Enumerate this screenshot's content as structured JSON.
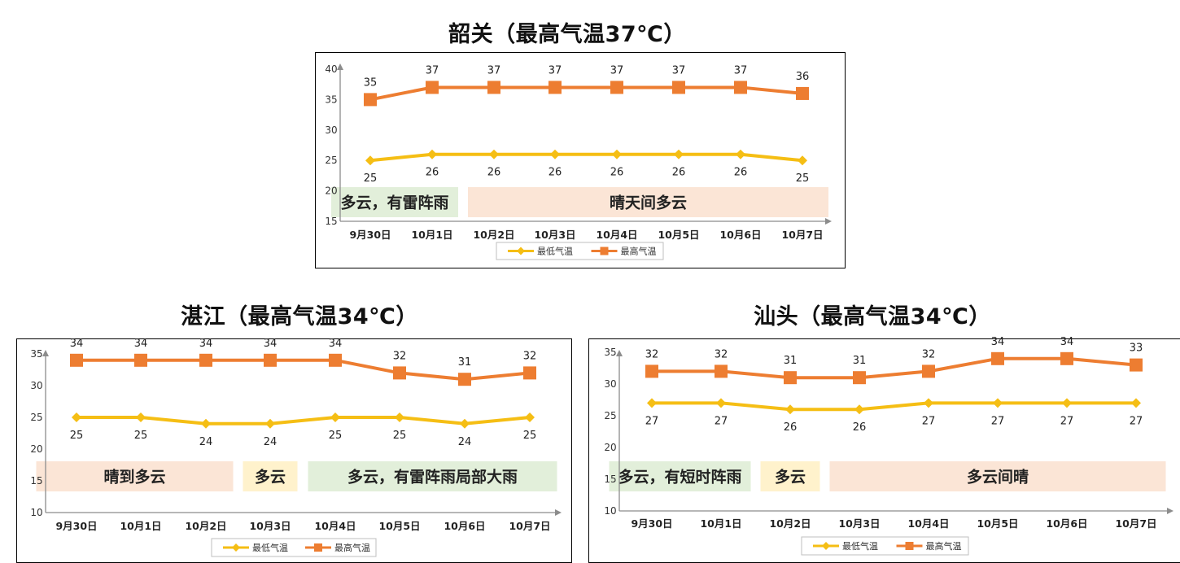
{
  "colors": {
    "max_line": "#ED7D31",
    "min_line": "#F5BE14",
    "weather_green": "#E2EFDA",
    "weather_peach": "#FBE5D6",
    "weather_yellow": "#FFF2CC",
    "axis": "#8c8c8c"
  },
  "chart_data": [
    {
      "type": "line",
      "title": "韶关（最高气温37℃）",
      "categories": [
        "9月30日",
        "10月1日",
        "10月2日",
        "10月3日",
        "10月4日",
        "10月5日",
        "10月6日",
        "10月7日"
      ],
      "series": [
        {
          "name": "最低气温",
          "values": [
            25,
            26,
            26,
            26,
            26,
            26,
            26,
            25
          ],
          "marker": "diamond"
        },
        {
          "name": "最高气温",
          "values": [
            35,
            37,
            37,
            37,
            37,
            37,
            37,
            36
          ],
          "marker": "square"
        }
      ],
      "ylim": [
        15,
        40
      ],
      "yticks": [
        15,
        20,
        25,
        30,
        35,
        40
      ],
      "grid": false,
      "legend": "bottom",
      "weather": [
        {
          "text": "多云，有雷阵雨",
          "from": "9月30日",
          "to": "10月1日",
          "color": "green"
        },
        {
          "text": "晴天间多云",
          "from": "10月2日",
          "to": "10月7日",
          "color": "peach"
        }
      ]
    },
    {
      "type": "line",
      "title": "湛江（最高气温34℃）",
      "categories": [
        "9月30日",
        "10月1日",
        "10月2日",
        "10月3日",
        "10月4日",
        "10月5日",
        "10月6日",
        "10月7日"
      ],
      "series": [
        {
          "name": "最低气温",
          "values": [
            25,
            25,
            24,
            24,
            25,
            25,
            24,
            25
          ],
          "marker": "diamond"
        },
        {
          "name": "最高气温",
          "values": [
            34,
            34,
            34,
            34,
            34,
            32,
            31,
            32
          ],
          "marker": "square"
        }
      ],
      "ylim": [
        10,
        35
      ],
      "yticks": [
        10,
        15,
        20,
        25,
        30,
        35
      ],
      "grid": false,
      "legend": "bottom",
      "weather": [
        {
          "text": "晴到多云",
          "from": "9月30日",
          "to": "10月2日",
          "color": "peach"
        },
        {
          "text": "多云",
          "from": "10月3日",
          "to": "10月3日",
          "color": "yellow"
        },
        {
          "text": "多云，有雷阵雨局部大雨",
          "from": "10月4日",
          "to": "10月7日",
          "color": "green"
        }
      ]
    },
    {
      "type": "line",
      "title": "汕头（最高气温34℃）",
      "categories": [
        "9月30日",
        "10月1日",
        "10月2日",
        "10月3日",
        "10月4日",
        "10月5日",
        "10月6日",
        "10月7日"
      ],
      "series": [
        {
          "name": "最低气温",
          "values": [
            27,
            27,
            26,
            26,
            27,
            27,
            27,
            27
          ],
          "marker": "diamond"
        },
        {
          "name": "最高气温",
          "values": [
            32,
            32,
            31,
            31,
            32,
            34,
            34,
            33
          ],
          "marker": "square"
        }
      ],
      "ylim": [
        10,
        35
      ],
      "yticks": [
        10,
        15,
        20,
        25,
        30,
        35
      ],
      "grid": false,
      "legend": "bottom",
      "weather": [
        {
          "text": "多云，有短时阵雨",
          "from": "9月30日",
          "to": "10月1日",
          "color": "green"
        },
        {
          "text": "多云",
          "from": "10月2日",
          "to": "10月2日",
          "color": "yellow"
        },
        {
          "text": "多云间晴",
          "from": "10月3日",
          "to": "10月7日",
          "color": "peach"
        }
      ]
    }
  ]
}
